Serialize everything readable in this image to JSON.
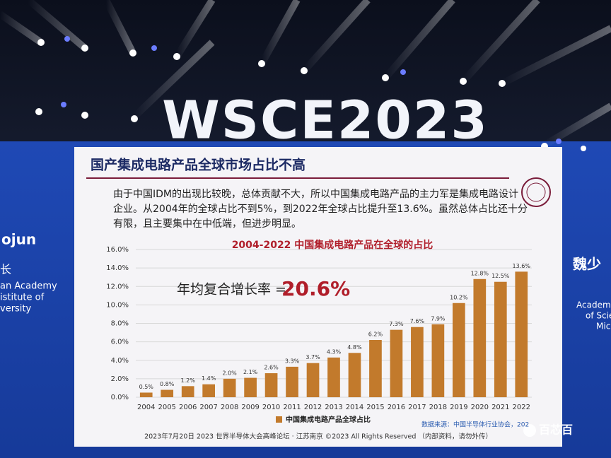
{
  "stage": {
    "banner": "WSCE2023",
    "left_texts": [
      "ojun",
      "长",
      "an Academy",
      "istitute of",
      "versity"
    ],
    "right_texts": [
      "魏少",
      "Academic",
      "of Scien",
      "Micr"
    ]
  },
  "slide": {
    "heading": "国产集成电路产品全球市场占比不高",
    "paragraph": [
      "由于中国IDM的出现比较晚，总体贡献不大，所以中国集成电路产品的主力军是集成电路设计",
      "企业。从2004年的全球占比不到5%，到2022年全球占比提升至13.6%。虽然总体占比还十分",
      "有限，且主要集中在中低端，但进步明显。"
    ],
    "source": "数据来源：中国半导体行业协会，202",
    "footer": "2023年7月20日 2023 世界半导体大会高峰论坛 · 江苏南京 ©2023 All Rights Reserved （内部资料，请勿外传）"
  },
  "watermark": "百芯百",
  "chart_data": {
    "type": "bar",
    "title": "2004-2022 中国集成电路产品在全球的占比",
    "annotation": "年均复合增长率 =",
    "highlight": "20.6%",
    "categories": [
      "2004",
      "2005",
      "2006",
      "2007",
      "2008",
      "2009",
      "2010",
      "2011",
      "2012",
      "2013",
      "2014",
      "2015",
      "2016",
      "2017",
      "2018",
      "2019",
      "2020",
      "2021",
      "2022"
    ],
    "series": [
      {
        "name": "中国集成电路产品全球占比",
        "color": "#c27a2c",
        "values": [
          0.5,
          0.8,
          1.2,
          1.4,
          2.0,
          2.1,
          2.6,
          3.3,
          3.7,
          4.3,
          4.8,
          6.2,
          7.3,
          7.6,
          7.9,
          10.2,
          12.8,
          12.5,
          13.6
        ],
        "value_labels": [
          "0.5%",
          "0.8%",
          "1.2%",
          "1.4%",
          "2.0%",
          "2.1%",
          "2.6%",
          "3.3%",
          "3.7%",
          "4.3%",
          "4.8%",
          "6.2%",
          "7.3%",
          "7.6%",
          "7.9%",
          "10.2%",
          "12.8%",
          "12.5%",
          "13.6%"
        ]
      }
    ],
    "ylim": [
      0,
      16
    ],
    "yticks": [
      {
        "value": 0,
        "label": "0.0%"
      },
      {
        "value": 2,
        "label": "2.0%"
      },
      {
        "value": 4,
        "label": "4.0%"
      },
      {
        "value": 6,
        "label": "6.0%"
      },
      {
        "value": 8,
        "label": "8.0%"
      },
      {
        "value": 10,
        "label": "10.0%"
      },
      {
        "value": 12,
        "label": "12.0%"
      },
      {
        "value": 14,
        "label": "14.0%"
      },
      {
        "value": 16,
        "label": "16.0%"
      }
    ],
    "grid": true
  }
}
